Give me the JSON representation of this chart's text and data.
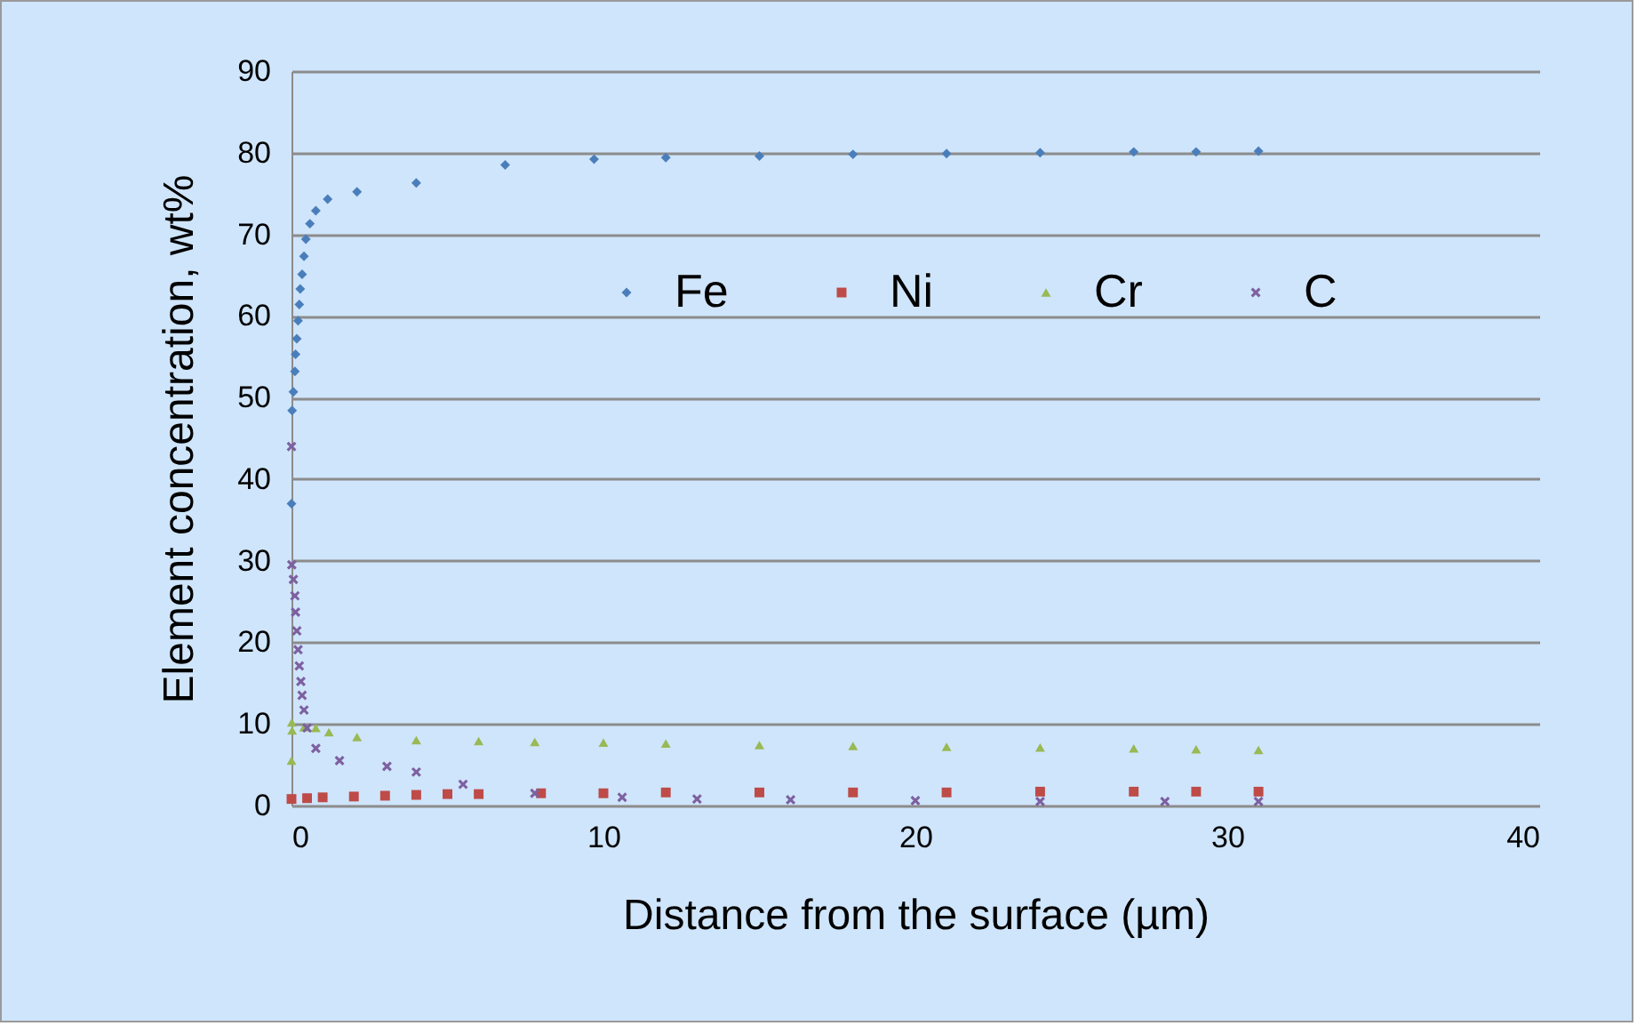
{
  "chart_data": {
    "type": "scatter",
    "xlabel": "Distance from the surface (µm)",
    "ylabel": "Element concentration, wt%",
    "xlim": [
      0,
      40
    ],
    "xticks": [
      0,
      10,
      20,
      30,
      40
    ],
    "ylim": [
      0,
      90
    ],
    "yticks": [
      0,
      10,
      20,
      30,
      40,
      50,
      60,
      70,
      80,
      90
    ],
    "grid": "y",
    "legend": "top",
    "series": [
      {
        "name": "Fe",
        "color": "#4a7ebb",
        "marker": "diamond",
        "x": [
          0,
          0.02,
          0.06,
          0.11,
          0.13,
          0.17,
          0.21,
          0.25,
          0.28,
          0.34,
          0.4,
          0.46,
          0.59,
          0.78,
          1.16,
          2.1,
          4.0,
          6.85,
          9.7,
          12,
          15,
          18,
          21,
          24,
          27,
          29,
          31
        ],
        "values": [
          37.0,
          48.4,
          50.7,
          53.2,
          55.3,
          57.2,
          59.4,
          61.4,
          63.3,
          65.1,
          67.3,
          69.4,
          71.3,
          72.9,
          74.3,
          75.2,
          76.3,
          78.5,
          79.2,
          79.4,
          79.6,
          79.8,
          79.9,
          80.0,
          80.1,
          80.1,
          80.2
        ]
      },
      {
        "name": "Ni",
        "color": "#be4b48",
        "marker": "square",
        "x": [
          0,
          0.5,
          1,
          2,
          3,
          4,
          5,
          6,
          8,
          10,
          12,
          15,
          18,
          21,
          24,
          27,
          29,
          31
        ],
        "values": [
          0.8,
          0.9,
          1.0,
          1.1,
          1.2,
          1.3,
          1.4,
          1.4,
          1.5,
          1.5,
          1.6,
          1.6,
          1.6,
          1.6,
          1.7,
          1.7,
          1.7,
          1.7
        ]
      },
      {
        "name": "Cr",
        "color": "#98b954",
        "marker": "triangle",
        "x": [
          0,
          0.01,
          0.02,
          0.4,
          0.78,
          1.2,
          2.1,
          4.0,
          6.0,
          7.8,
          10,
          12,
          15,
          18,
          21,
          24,
          27,
          29,
          31
        ],
        "values": [
          5.5,
          10.2,
          9.2,
          9.6,
          9.5,
          9.0,
          8.4,
          8.0,
          7.9,
          7.8,
          7.7,
          7.6,
          7.4,
          7.3,
          7.2,
          7.1,
          7.0,
          6.9,
          6.8
        ]
      },
      {
        "name": "C",
        "color": "#7d60a0",
        "marker": "cross",
        "x": [
          0,
          0.01,
          0.06,
          0.11,
          0.13,
          0.17,
          0.21,
          0.25,
          0.3,
          0.34,
          0.4,
          0.5,
          0.78,
          1.54,
          3.06,
          4.0,
          5.5,
          7.8,
          10.6,
          13,
          16,
          20,
          24,
          28,
          31
        ],
        "values": [
          44.0,
          29.5,
          27.7,
          25.7,
          23.7,
          21.4,
          19.1,
          17.1,
          15.2,
          13.5,
          11.7,
          9.5,
          7.0,
          5.5,
          4.8,
          4.1,
          2.6,
          1.5,
          1.0,
          0.8,
          0.7,
          0.6,
          0.5,
          0.5,
          0.5
        ]
      }
    ]
  }
}
